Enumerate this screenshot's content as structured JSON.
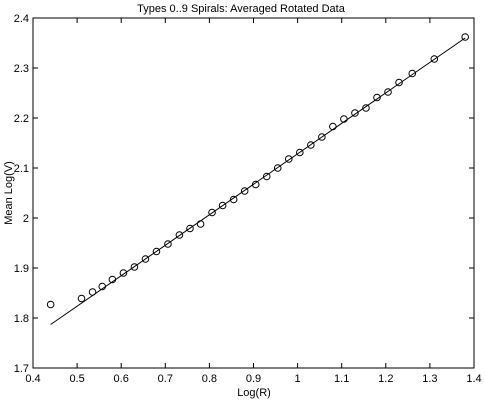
{
  "chart_data": {
    "type": "scatter",
    "title": "Types 0..9 Spirals: Averaged Rotated Data",
    "xlabel": "Log(R)",
    "ylabel": "Mean  Log(V)",
    "xlim": [
      0.4,
      1.4
    ],
    "ylim": [
      1.7,
      2.4
    ],
    "xticks": [
      "0.4",
      "0.5",
      "0.6",
      "0.7",
      "0.8",
      "0.9",
      "1",
      "1.1",
      "1.2",
      "1.3",
      "1.4"
    ],
    "yticks": [
      "1.7",
      "1.8",
      "1.9",
      "2",
      "2.1",
      "2.2",
      "2.3",
      "2.4"
    ],
    "grid": false,
    "series": [
      {
        "kind": "scatter",
        "marker": "circle",
        "color": "#000000",
        "x": [
          0.44,
          0.51,
          0.535,
          0.557,
          0.58,
          0.605,
          0.63,
          0.655,
          0.68,
          0.706,
          0.732,
          0.756,
          0.78,
          0.806,
          0.83,
          0.855,
          0.88,
          0.905,
          0.93,
          0.955,
          0.98,
          1.005,
          1.03,
          1.055,
          1.08,
          1.105,
          1.13,
          1.155,
          1.18,
          1.205,
          1.23,
          1.26,
          1.31,
          1.38
        ],
        "y": [
          1.827,
          1.839,
          1.852,
          1.863,
          1.877,
          1.89,
          1.902,
          1.918,
          1.933,
          1.948,
          1.966,
          1.979,
          1.988,
          2.011,
          2.025,
          2.037,
          2.054,
          2.067,
          2.083,
          2.1,
          2.118,
          2.131,
          2.146,
          2.162,
          2.183,
          2.198,
          2.21,
          2.22,
          2.241,
          2.252,
          2.271,
          2.289,
          2.318,
          2.362
        ]
      },
      {
        "kind": "line",
        "color": "#000000",
        "x": [
          0.44,
          1.38
        ],
        "y": [
          1.787,
          2.36
        ]
      }
    ]
  }
}
